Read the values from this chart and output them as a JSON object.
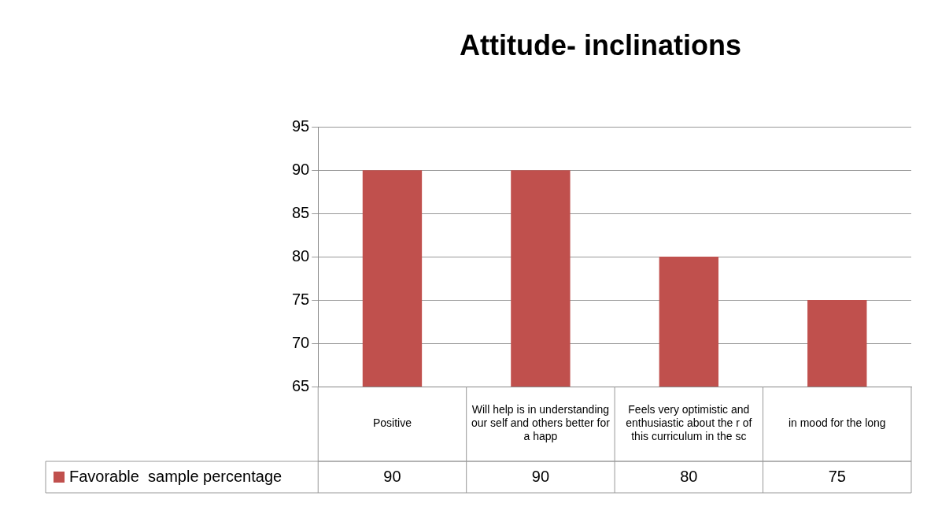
{
  "chart_data": {
    "type": "bar",
    "title": "Attitude- inclinations",
    "categories": [
      "Positive",
      "Will help is in understanding our self and others better for a happ",
      "Feels very optimistic and enthusiastic about the r of this curriculum in the sc",
      "in mood for the long"
    ],
    "series": [
      {
        "name": "Favorable  sample percentage",
        "color": "#c0504d",
        "values": [
          90,
          90,
          80,
          75
        ]
      }
    ],
    "ylim": [
      65,
      95
    ],
    "yticks": [
      65,
      70,
      75,
      80,
      85,
      90,
      95
    ],
    "grid": "y",
    "legend": "bottom",
    "data_labels": true
  }
}
